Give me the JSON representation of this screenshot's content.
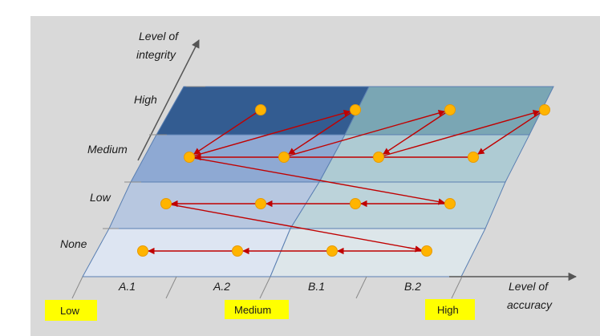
{
  "axes": {
    "y_title_line1": "Level of",
    "y_title_line2": "integrity",
    "x_title_line1": "Level of",
    "x_title_line2": "accuracy"
  },
  "rows": [
    "None",
    "Low",
    "Medium",
    "High"
  ],
  "columns": [
    "A.1",
    "A.2",
    "B.1",
    "B.2"
  ],
  "badges": [
    "Low",
    "Medium",
    "High"
  ],
  "colors": {
    "background": "#d9d9d9",
    "left_none": "#dde5f2",
    "left_low": "#b7c7e0",
    "left_medium": "#8ea9d3",
    "left_high": "#335c91",
    "right_none": "#dde6ea",
    "right_low": "#bcd3da",
    "right_medium": "#aecbd3",
    "right_high": "#7aa6b4",
    "arrow": "#c00000",
    "dot": "#ffb400",
    "badge": "#ffff00"
  },
  "path": [
    {
      "col": 1,
      "row": 4
    },
    {
      "col": 0,
      "row": 3
    },
    {
      "col": 3,
      "row": 4
    },
    {
      "col": 2,
      "row": 3
    },
    {
      "col": 5,
      "row": 4
    },
    {
      "col": 4,
      "row": 3
    },
    {
      "col": 7,
      "row": 4
    },
    {
      "col": 6,
      "row": 3
    },
    {
      "col": 0,
      "row": 3
    },
    {
      "col": 6,
      "row": 2
    },
    {
      "col": 4,
      "row": 2
    },
    {
      "col": 2,
      "row": 2
    },
    {
      "col": 0,
      "row": 2
    },
    {
      "col": 6,
      "row": 1
    },
    {
      "col": 4,
      "row": 1
    },
    {
      "col": 2,
      "row": 1
    },
    {
      "col": 0,
      "row": 1
    }
  ]
}
